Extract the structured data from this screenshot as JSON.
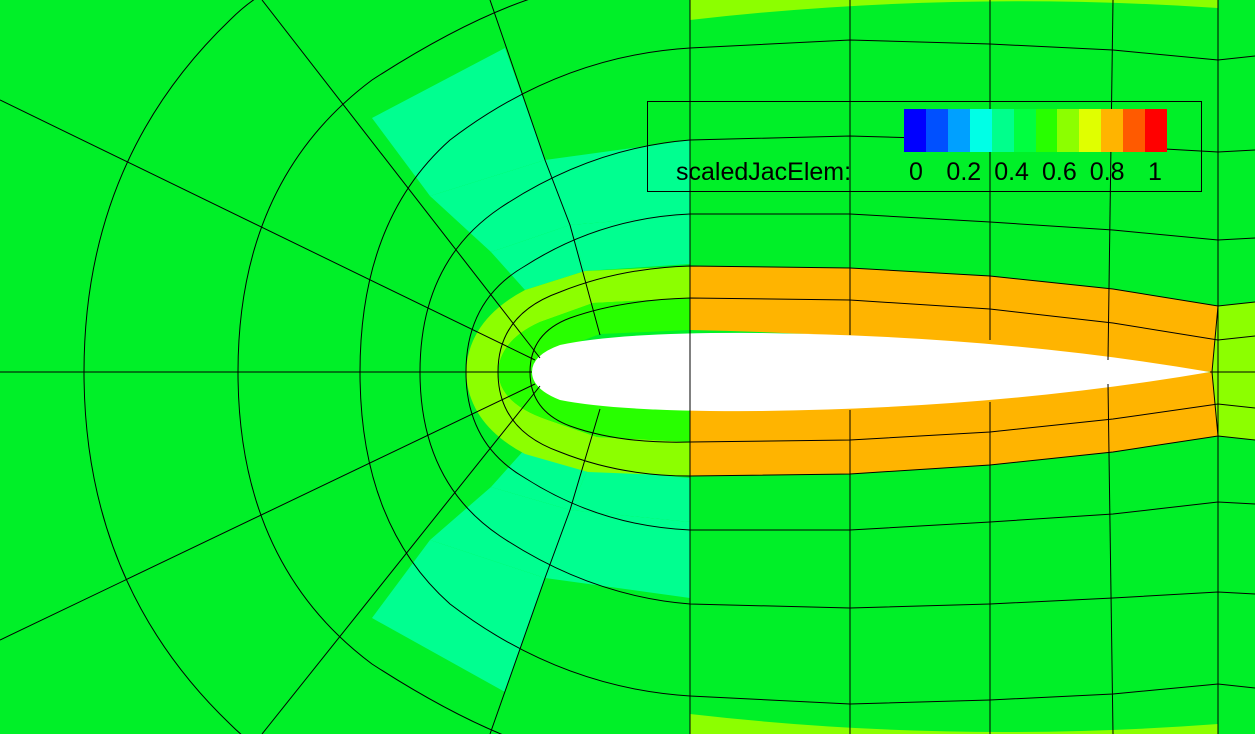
{
  "colors": {
    "background": "#00f028",
    "airfoil": "#ffffff",
    "gridline": "#000000",
    "band_outer": "#00ff90",
    "band_mid": "#00ff00",
    "band_pale": "#8cff00",
    "band_high": "#ffb400"
  },
  "legend": {
    "title": "scaledJacElem:",
    "ticks": [
      "0",
      "0.2",
      "0.4",
      "0.6",
      "0.8",
      "1"
    ],
    "colormap": [
      "#0000ff",
      "#0050ff",
      "#00a0ff",
      "#00ffe6",
      "#00ff8c",
      "#00ff40",
      "#28ff00",
      "#8cff00",
      "#e0ff00",
      "#ffb400",
      "#ff5a00",
      "#ff0000"
    ]
  }
}
